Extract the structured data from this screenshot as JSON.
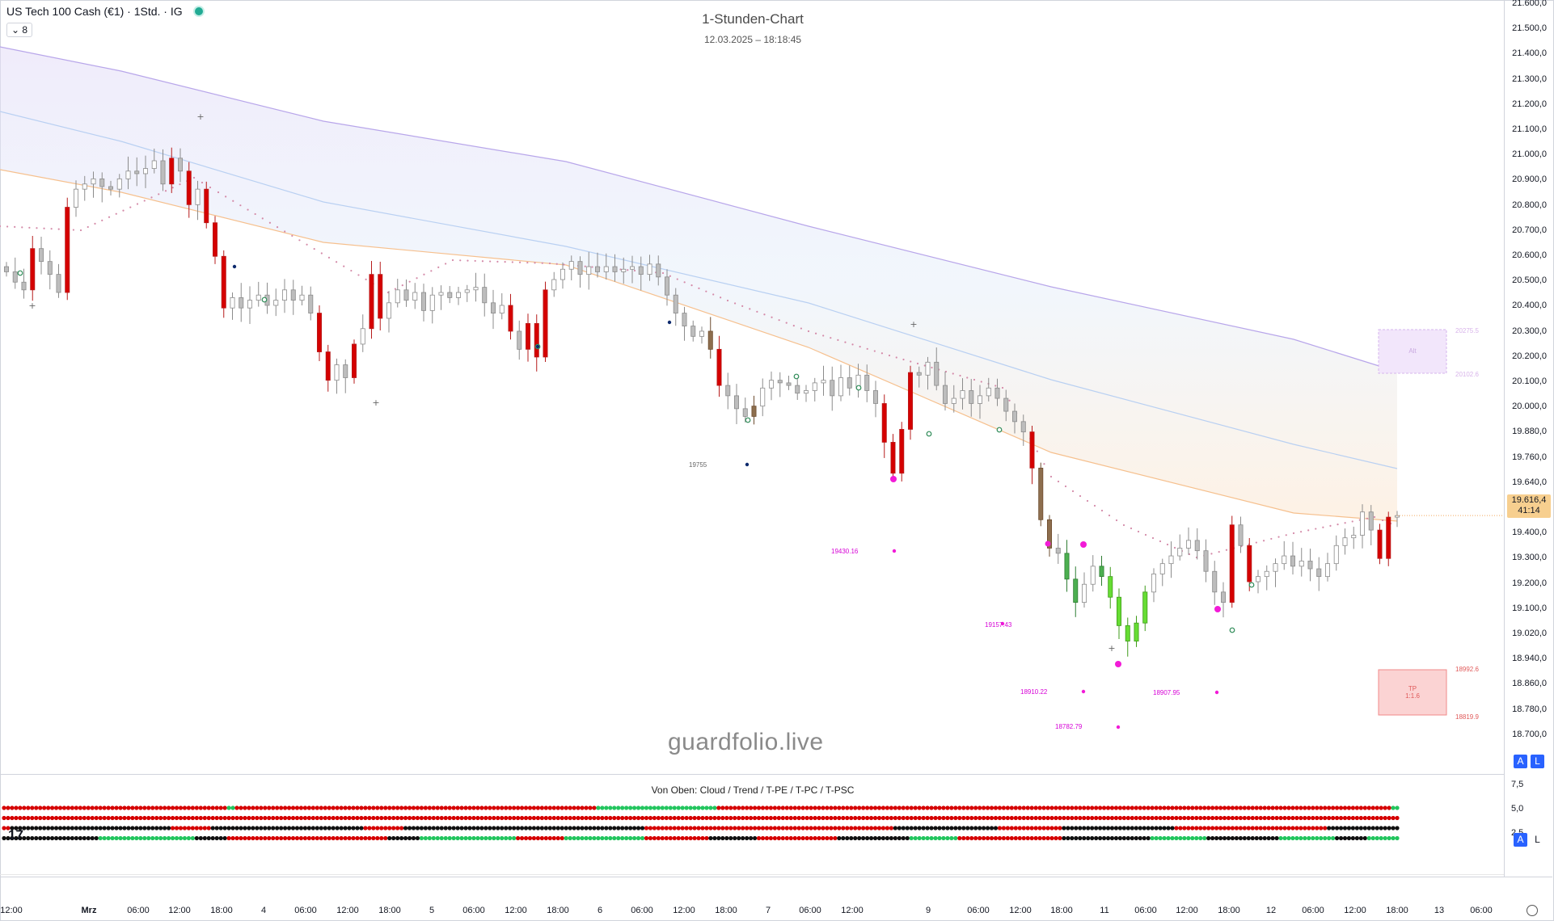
{
  "header": {
    "symbol": "US Tech 100 Cash (€1) · 1Std. · IG",
    "collapse_count": "⌄ 8",
    "title": "1-Stunden-Chart",
    "date": "12.03.2025 – 18:18:45"
  },
  "watermark": "guardfolio.live",
  "price_axis": {
    "ticks": [
      "21.600,0",
      "21.500,0",
      "21.400,0",
      "21.300,0",
      "21.200,0",
      "21.100,0",
      "21.000,0",
      "20.900,0",
      "20.800,0",
      "20.700,0",
      "20.600,0",
      "20.500,0",
      "20.400,0",
      "20.300,0",
      "20.200,0",
      "20.100,0",
      "20.000,0",
      "19.880,0",
      "19.760,0",
      "19.640,0",
      "19.520,0",
      "19.400,0",
      "19.300,0",
      "19.200,0",
      "19.100,0",
      "19.020,0",
      "18.940,0",
      "18.860,0",
      "18.780,0",
      "18.700,0"
    ],
    "last_price": "19.616,4",
    "countdown": "41:14",
    "btn_auto": "A",
    "btn_log": "L"
  },
  "indicator": {
    "title": "Von Oben: Cloud / Trend / T-PE / T-PC / T-PSC",
    "ticks": [
      "7,5",
      "5,0",
      "2,5"
    ],
    "btn_auto": "A",
    "btn_log": "L",
    "rows": [
      [
        [
          0,
          56,
          "r"
        ],
        [
          56,
          58,
          "g"
        ],
        [
          58,
          148,
          "r"
        ],
        [
          148,
          178,
          "g"
        ],
        [
          178,
          346,
          "r"
        ],
        [
          346,
          348,
          "g"
        ]
      ],
      [
        [
          0,
          348,
          "r"
        ]
      ],
      [
        [
          0,
          2,
          "r"
        ],
        [
          2,
          10,
          "k"
        ],
        [
          10,
          42,
          "k"
        ],
        [
          42,
          52,
          "r"
        ],
        [
          52,
          90,
          "k"
        ],
        [
          90,
          100,
          "r"
        ],
        [
          100,
          130,
          "k"
        ],
        [
          130,
          160,
          "k"
        ],
        [
          160,
          176,
          "r"
        ],
        [
          176,
          222,
          "r"
        ],
        [
          222,
          248,
          "k"
        ],
        [
          248,
          264,
          "r"
        ],
        [
          264,
          292,
          "k"
        ],
        [
          292,
          330,
          "r"
        ],
        [
          330,
          348,
          "k"
        ]
      ],
      [
        [
          0,
          24,
          "k"
        ],
        [
          24,
          48,
          "g"
        ],
        [
          48,
          56,
          "k"
        ],
        [
          56,
          96,
          "r"
        ],
        [
          96,
          104,
          "k"
        ],
        [
          104,
          128,
          "g"
        ],
        [
          128,
          140,
          "r"
        ],
        [
          140,
          160,
          "g"
        ],
        [
          160,
          176,
          "r"
        ],
        [
          176,
          188,
          "k"
        ],
        [
          188,
          208,
          "r"
        ],
        [
          208,
          214,
          "k"
        ],
        [
          214,
          226,
          "k"
        ],
        [
          226,
          238,
          "g"
        ],
        [
          238,
          264,
          "r"
        ],
        [
          264,
          286,
          "k"
        ],
        [
          286,
          300,
          "g"
        ],
        [
          300,
          318,
          "k"
        ],
        [
          318,
          332,
          "g"
        ],
        [
          332,
          340,
          "k"
        ],
        [
          340,
          348,
          "g"
        ]
      ]
    ]
  },
  "time_axis": [
    "12:00",
    "Mrz",
    "06:00",
    "12:00",
    "18:00",
    "4",
    "06:00",
    "12:00",
    "18:00",
    "5",
    "06:00",
    "12:00",
    "18:00",
    "6",
    "06:00",
    "12:00",
    "18:00",
    "7",
    "06:00",
    "12:00",
    "9",
    "06:00",
    "12:00",
    "18:00",
    "11",
    "06:00",
    "12:00",
    "18:00",
    "12",
    "06:00",
    "12:00",
    "18:00",
    "13",
    "06:00"
  ],
  "labels": {
    "level_19755": "19755",
    "level_19430": "19430.16",
    "level_19157": "19157.43",
    "level_18910": "18910.22",
    "level_18907": "18907.95",
    "level_18782": "18782.79",
    "alt_box": "Alt",
    "alt_top": "20275.5",
    "alt_bottom": "20102.6",
    "tp_box_line1": "TP",
    "tp_box_line2": "1:1.6",
    "tp_top": "18992.6",
    "tp_bottom": "18819.9"
  },
  "chart_data": {
    "type": "candlestick",
    "instrument": "US Tech 100 Cash (€1)",
    "timeframe": "1Std.",
    "ylim": [
      18700,
      21600
    ],
    "last": 19616.4,
    "closes": [
      20560,
      20520,
      20490,
      20650,
      20600,
      20550,
      20480,
      20810,
      20880,
      20900,
      20920,
      20890,
      20880,
      20920,
      20950,
      20940,
      20960,
      20990,
      20900,
      21000,
      20950,
      20820,
      20880,
      20750,
      20620,
      20420,
      20460,
      20420,
      20450,
      20470,
      20430,
      20450,
      20490,
      20450,
      20470,
      20400,
      20250,
      20140,
      20200,
      20150,
      20280,
      20340,
      20550,
      20380,
      20440,
      20490,
      20450,
      20480,
      20410,
      20470,
      20480,
      20460,
      20480,
      20490,
      20500,
      20440,
      20400,
      20430,
      20330,
      20260,
      20360,
      20230,
      20490,
      20530,
      20570,
      20600,
      20550,
      20580,
      20560,
      20580,
      20560,
      20570,
      20580,
      20550,
      20590,
      20540,
      20470,
      20400,
      20350,
      20310,
      20330,
      20260,
      20120,
      20080,
      20030,
      20000,
      20040,
      20110,
      20140,
      20130,
      20120,
      20090,
      20100,
      20130,
      20140,
      20080,
      20150,
      20110,
      20160,
      20100,
      20050,
      19900,
      19780,
      19950,
      20170,
      20160,
      20210,
      20120,
      20050,
      20070,
      20100,
      20050,
      20080,
      20110,
      20070,
      20020,
      19980,
      19940,
      19800,
      19600,
      19490,
      19470,
      19370,
      19280,
      19350,
      19420,
      19380,
      19300,
      19190,
      19130,
      19200,
      19320,
      19390,
      19430,
      19460,
      19490,
      19520,
      19480,
      19400,
      19320,
      19280,
      19580,
      19500,
      19360,
      19380,
      19400,
      19430,
      19460,
      19420,
      19440,
      19410,
      19380,
      19430,
      19500,
      19530,
      19540,
      19630,
      19560,
      19450,
      19610,
      19616
    ]
  }
}
